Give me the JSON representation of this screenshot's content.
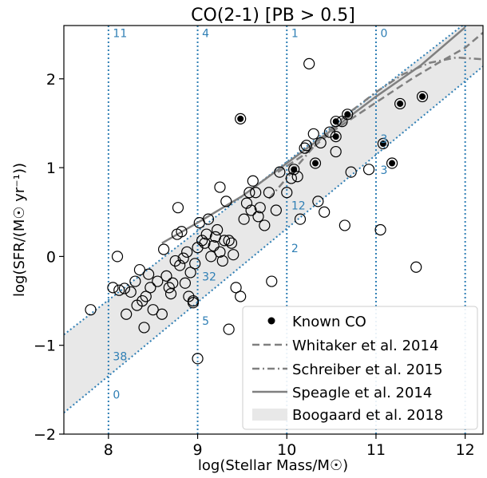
{
  "chart_data": {
    "type": "scatter",
    "title": "CO(2-1) [PB > 0.5]",
    "xlabel": "log(Stellar Mass/M☉)",
    "ylabel": "log(SFR/(M☉ yr⁻¹))",
    "xlim": [
      7.5,
      12.2
    ],
    "ylim": [
      -2.0,
      2.6
    ],
    "x_ticks": [
      8,
      9,
      10,
      11,
      12
    ],
    "y_ticks": [
      -2,
      -1,
      0,
      1,
      2
    ],
    "x_tick_labels": [
      "8",
      "9",
      "10",
      "11",
      "12"
    ],
    "y_tick_labels": [
      "−2",
      "−1",
      "0",
      "1",
      "2"
    ],
    "grid": false,
    "legend_position": "lower-right",
    "colors": {
      "count_text": "#2f7fb5",
      "vertical_lines": "#2f7fb5",
      "band_fill": "#e8e8e8",
      "relation_lines": "#808080",
      "markers": "#000000"
    },
    "vertical_dotted_lines": [
      8,
      9,
      10,
      11,
      12
    ],
    "count_labels_top": [
      {
        "x": 8.05,
        "y": 2.47,
        "text": "11"
      },
      {
        "x": 9.05,
        "y": 2.47,
        "text": "4"
      },
      {
        "x": 10.05,
        "y": 2.47,
        "text": "1"
      },
      {
        "x": 11.05,
        "y": 2.47,
        "text": "0"
      }
    ],
    "count_labels_above_band": [
      {
        "x": 11.05,
        "y": 1.28,
        "text": "3"
      },
      {
        "x": 10.05,
        "y": 0.53,
        "text": "12"
      },
      {
        "x": 9.05,
        "y": -0.27,
        "text": "32"
      },
      {
        "x": 8.05,
        "y": -1.17,
        "text": "38"
      }
    ],
    "count_labels_below_band": [
      {
        "x": 11.05,
        "y": 0.93,
        "text": "3"
      },
      {
        "x": 10.05,
        "y": 0.05,
        "text": "2"
      },
      {
        "x": 9.05,
        "y": -0.77,
        "text": "5"
      },
      {
        "x": 8.05,
        "y": -1.6,
        "text": "0"
      }
    ],
    "band": {
      "name": "Boogaard et al. 2018",
      "upper": [
        [
          7.5,
          -0.88
        ],
        [
          12.2,
          2.78
        ]
      ],
      "lower": [
        [
          7.5,
          -1.76
        ],
        [
          12.2,
          2.14
        ]
      ]
    },
    "series": [
      {
        "name": "Known CO",
        "marker": "filled-circle",
        "points": [
          [
            9.48,
            1.55
          ],
          [
            10.08,
            0.98
          ],
          [
            10.32,
            1.05
          ],
          [
            10.55,
            1.52
          ],
          [
            10.55,
            1.35
          ],
          [
            10.68,
            1.6
          ],
          [
            11.08,
            1.27
          ],
          [
            11.18,
            1.05
          ],
          [
            11.27,
            1.72
          ],
          [
            11.52,
            1.8
          ]
        ]
      },
      {
        "name": "",
        "marker": "open-circle",
        "points": [
          [
            7.8,
            -0.6
          ],
          [
            8.05,
            -0.35
          ],
          [
            8.1,
            0.0
          ],
          [
            8.12,
            -0.38
          ],
          [
            8.18,
            -0.36
          ],
          [
            8.2,
            -0.65
          ],
          [
            8.25,
            -0.4
          ],
          [
            8.3,
            -0.28
          ],
          [
            8.32,
            -0.55
          ],
          [
            8.35,
            -0.15
          ],
          [
            8.38,
            -0.5
          ],
          [
            8.4,
            -0.8
          ],
          [
            8.42,
            -0.45
          ],
          [
            8.45,
            -0.2
          ],
          [
            8.47,
            -0.35
          ],
          [
            8.5,
            -0.6
          ],
          [
            8.55,
            -0.28
          ],
          [
            8.6,
            -0.65
          ],
          [
            8.62,
            0.08
          ],
          [
            8.65,
            -0.22
          ],
          [
            8.68,
            -0.35
          ],
          [
            8.7,
            -0.42
          ],
          [
            8.72,
            -0.3
          ],
          [
            8.75,
            -0.05
          ],
          [
            8.77,
            0.25
          ],
          [
            8.78,
            0.55
          ],
          [
            8.8,
            -0.1
          ],
          [
            8.82,
            0.28
          ],
          [
            8.84,
            -0.02
          ],
          [
            8.86,
            -0.3
          ],
          [
            8.88,
            0.05
          ],
          [
            8.9,
            -0.45
          ],
          [
            8.92,
            -0.18
          ],
          [
            8.95,
            -0.5
          ],
          [
            8.97,
            -0.08
          ],
          [
            9.0,
            0.1
          ],
          [
            9.02,
            0.38
          ],
          [
            9.05,
            0.18
          ],
          [
            9.08,
            0.15
          ],
          [
            9.1,
            0.25
          ],
          [
            9.12,
            0.42
          ],
          [
            9.15,
            0.0
          ],
          [
            9.18,
            0.12
          ],
          [
            9.2,
            0.22
          ],
          [
            9.22,
            0.3
          ],
          [
            9.25,
            0.05
          ],
          [
            9.28,
            -0.05
          ],
          [
            9.3,
            0.18
          ],
          [
            9.32,
            0.62
          ],
          [
            9.35,
            0.18
          ],
          [
            9.38,
            0.15
          ],
          [
            9.4,
            0.02
          ],
          [
            9.43,
            -0.35
          ],
          [
            9.48,
            -0.45
          ],
          [
            9.52,
            0.42
          ],
          [
            9.55,
            0.6
          ],
          [
            9.58,
            0.72
          ],
          [
            9.6,
            0.52
          ],
          [
            9.62,
            0.85
          ],
          [
            9.65,
            0.72
          ],
          [
            9.68,
            0.45
          ],
          [
            9.7,
            0.55
          ],
          [
            9.75,
            0.35
          ],
          [
            9.8,
            0.72
          ],
          [
            9.83,
            -0.28
          ],
          [
            9.88,
            0.52
          ],
          [
            9.92,
            0.95
          ],
          [
            10.0,
            0.72
          ],
          [
            10.05,
            0.88
          ],
          [
            10.12,
            0.9
          ],
          [
            10.15,
            0.42
          ],
          [
            10.2,
            1.22
          ],
          [
            10.22,
            1.25
          ],
          [
            10.25,
            2.17
          ],
          [
            10.3,
            1.38
          ],
          [
            10.35,
            0.62
          ],
          [
            10.38,
            1.28
          ],
          [
            10.42,
            0.5
          ],
          [
            10.48,
            1.4
          ],
          [
            10.55,
            1.18
          ],
          [
            10.62,
            1.52
          ],
          [
            10.65,
            0.35
          ],
          [
            10.72,
            0.95
          ],
          [
            10.92,
            0.98
          ],
          [
            11.05,
            0.3
          ],
          [
            11.45,
            -0.12
          ],
          [
            9.25,
            0.78
          ],
          [
            9.35,
            -0.82
          ],
          [
            9.0,
            -1.15
          ],
          [
            8.95,
            -0.52
          ]
        ]
      }
    ],
    "lines": [
      {
        "name": "Whitaker et al. 2014",
        "style": "dashed",
        "points": [
          [
            9.9,
            0.95
          ],
          [
            10.2,
            1.15
          ],
          [
            10.5,
            1.4
          ],
          [
            10.8,
            1.6
          ],
          [
            11.1,
            1.8
          ],
          [
            11.4,
            2.0
          ],
          [
            11.7,
            2.18
          ],
          [
            12.0,
            2.35
          ],
          [
            12.2,
            2.52
          ]
        ]
      },
      {
        "name": "Schreiber et al. 2015",
        "style": "dashdot",
        "points": [
          [
            9.8,
            0.65
          ],
          [
            10.1,
            1.0
          ],
          [
            10.4,
            1.35
          ],
          [
            10.7,
            1.62
          ],
          [
            11.0,
            1.85
          ],
          [
            11.3,
            2.05
          ],
          [
            11.6,
            2.18
          ],
          [
            11.9,
            2.24
          ],
          [
            12.2,
            2.22
          ]
        ]
      },
      {
        "name": "Speagle et al. 2014",
        "style": "solid",
        "points": [
          [
            8.6,
            0.15
          ],
          [
            9.0,
            0.38
          ],
          [
            9.5,
            0.68
          ],
          [
            10.0,
            1.05
          ],
          [
            10.5,
            1.42
          ],
          [
            11.0,
            1.8
          ],
          [
            11.5,
            2.15
          ],
          [
            12.0,
            2.58
          ]
        ]
      }
    ]
  }
}
